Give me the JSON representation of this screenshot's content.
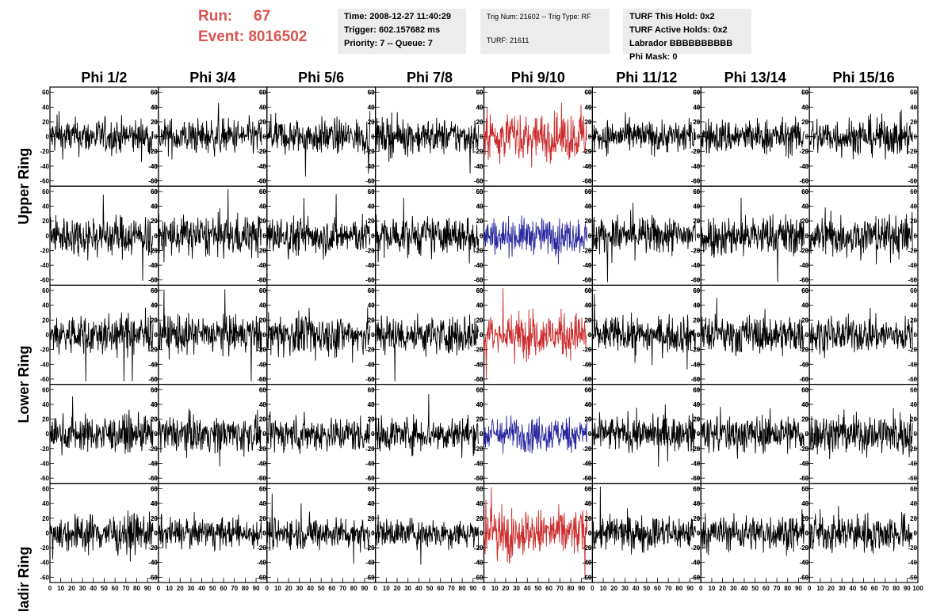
{
  "header": {
    "run_label": "Run:",
    "run_value": "67",
    "event_label": "Event:",
    "event_value": "8016502",
    "time": "Time: 2008-12-27 11:40:29",
    "trigger": "Trigger: 602.157682 ms",
    "priority": "Priority: 7 -- Queue: 7",
    "trig_num": "Trig Num: 21602 -- Trig Type: RF",
    "turf": "TURF: 21611",
    "turf_hold": "TURF This Hold: 0x2",
    "turf_active": "TURF Active Holds: 0x2",
    "labrador": "Labrador BBBBBBBBBB",
    "phi_mask": "Phi Mask: 0"
  },
  "colors": {
    "run_text": "#d9534f",
    "trace_default": "#000000",
    "trace_red": "#cc2a2a",
    "trace_blue": "#2a2aa0",
    "info_bg": "#ececec"
  },
  "chart_data": {
    "type": "line",
    "note_columns": [
      "Phi 1/2",
      "Phi 3/4",
      "Phi 5/6",
      "Phi 7/8",
      "Phi 9/10",
      "Phi 11/12",
      "Phi 13/14",
      "Phi 15/16"
    ],
    "columns": [
      "Phi 1/2",
      "Phi 3/4",
      "Phi 5/6",
      "Phi 7/8",
      "Phi 9/10",
      "Phi 11/12",
      "Phi 13/14",
      "Phi 15/16"
    ],
    "rows": [
      "Upper Ring",
      "",
      "Lower Ring",
      "",
      "Nadir Ring"
    ],
    "ylim": [
      -65,
      65
    ],
    "yticks": [
      -60,
      -40,
      -20,
      0,
      20,
      40,
      60
    ],
    "xlim": [
      0,
      100
    ],
    "xticks": [
      0,
      10,
      20,
      30,
      40,
      50,
      60,
      70,
      80,
      90,
      100
    ],
    "highlight": [
      {
        "row": 0,
        "col": 4,
        "color": "red"
      },
      {
        "row": 1,
        "col": 4,
        "color": "blue"
      },
      {
        "row": 2,
        "col": 4,
        "color": "red"
      },
      {
        "row": 3,
        "col": 4,
        "color": "blue"
      },
      {
        "row": 4,
        "col": 4,
        "color": "red"
      }
    ],
    "amplitude": [
      [
        12,
        12,
        12,
        12,
        16,
        11,
        12,
        13
      ],
      [
        14,
        14,
        13,
        13,
        12,
        13,
        14,
        14
      ],
      [
        14,
        13,
        14,
        13,
        15,
        12,
        13,
        12
      ],
      [
        12,
        12,
        12,
        12,
        12,
        12,
        13,
        14
      ],
      [
        13,
        10,
        11,
        10,
        16,
        12,
        12,
        13
      ]
    ],
    "samples": 260,
    "grid": false
  }
}
